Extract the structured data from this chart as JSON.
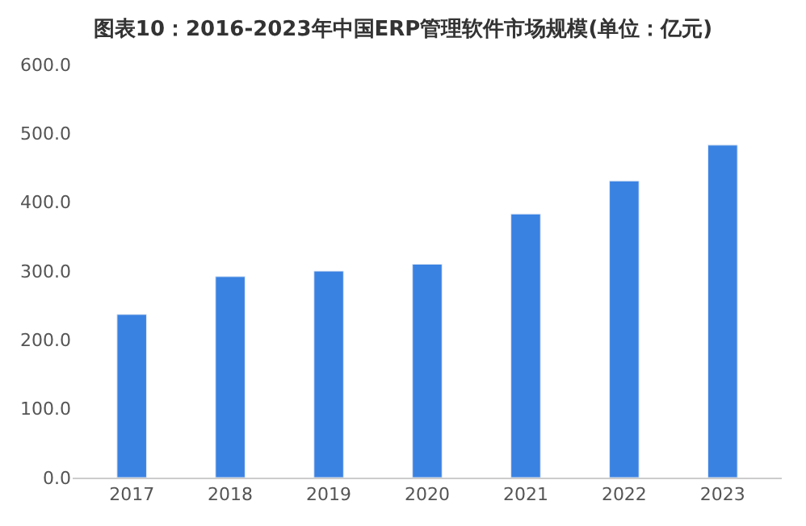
{
  "chart_data": {
    "type": "bar",
    "title": "图表10：2016-2023年中国ERP管理软件市场规模(单位：亿元)",
    "categories": [
      "2017",
      "2018",
      "2019",
      "2020",
      "2021",
      "2022",
      "2023"
    ],
    "values": [
      237,
      292,
      300,
      310,
      383,
      431,
      483
    ],
    "color": "#3a82e2",
    "ylim": [
      0,
      600
    ],
    "yticks": [
      {
        "value": 0,
        "label": "0.0"
      },
      {
        "value": 100,
        "label": "100.0"
      },
      {
        "value": 200,
        "label": "200.0"
      },
      {
        "value": 300,
        "label": "300.0"
      },
      {
        "value": 400,
        "label": "400.0"
      },
      {
        "value": 500,
        "label": "500.0"
      },
      {
        "value": 600,
        "label": "600.0"
      }
    ],
    "legend": false
  }
}
